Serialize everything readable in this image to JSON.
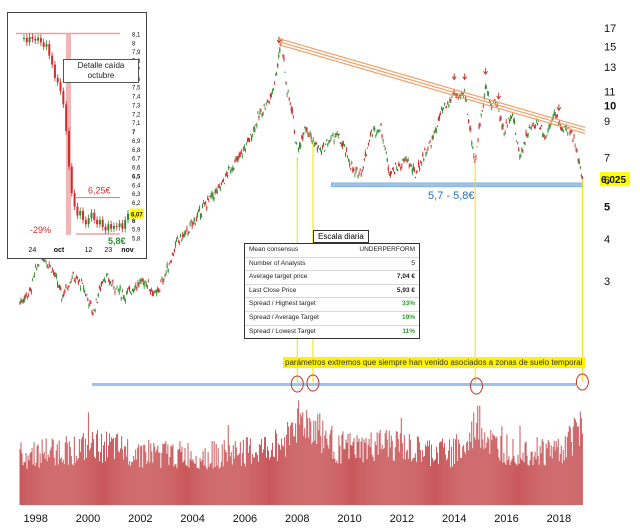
{
  "chart_data": [
    {
      "type": "line",
      "scale": "log",
      "yticks": [
        "17",
        "15",
        "13",
        "11",
        "10",
        "9",
        "7",
        "6",
        "5",
        "4",
        "3"
      ],
      "xticks": [
        "1998",
        "2000",
        "2002",
        "2004",
        "2006",
        "2008",
        "2010",
        "2012",
        "2014",
        "2016",
        "2018"
      ],
      "price_label": "6,025",
      "support_label": "5,7 - 5,8€",
      "series": [
        {
          "x": [
            1997.4,
            1997.8,
            1998.2,
            1998.6,
            1999.0,
            1999.4,
            1999.8,
            2000.2,
            2000.6,
            2001.0,
            2001.4,
            2001.8,
            2002.2,
            2002.6,
            2003.0,
            2003.4,
            2003.8,
            2004.2,
            2004.6,
            2005.0,
            2005.4,
            2005.8,
            2006.2,
            2006.6,
            2007.0,
            2007.2,
            2007.4,
            2007.6,
            2007.8,
            2008.0,
            2008.3,
            2008.6,
            2008.9,
            2009.2,
            2009.5,
            2009.8,
            2010.2,
            2010.5,
            2010.8,
            2011.2,
            2011.5,
            2011.8,
            2012.2,
            2012.5,
            2012.8,
            2013.2,
            2013.5,
            2013.8,
            2014.0,
            2014.2,
            2014.4,
            2014.6,
            2014.8,
            2015.0,
            2015.2,
            2015.4,
            2015.6,
            2015.9,
            2016.2,
            2016.5,
            2016.8,
            2017.2,
            2017.5,
            2017.8,
            2018.1,
            2018.4,
            2018.6,
            2018.8,
            2018.9
          ],
          "values": [
            2.6,
            2.8,
            3.6,
            3.3,
            2.7,
            3.1,
            2.9,
            2.4,
            3.1,
            2.9,
            2.7,
            2.9,
            3.0,
            2.7,
            3.2,
            3.9,
            4.2,
            4.7,
            5.2,
            5.6,
            6.4,
            7.0,
            8.0,
            9.5,
            10.6,
            12.5,
            15.8,
            11.0,
            9.8,
            7.0,
            8.8,
            7.8,
            7.3,
            7.8,
            8.2,
            7.4,
            6.2,
            6.5,
            8.2,
            8.6,
            6.4,
            6.5,
            6.9,
            6.2,
            7.0,
            8.0,
            9.5,
            10.1,
            11.0,
            10.3,
            11.0,
            8.6,
            6.7,
            9.0,
            11.4,
            10.0,
            10.3,
            8.3,
            9.6,
            7.0,
            8.3,
            9.0,
            8.0,
            9.5,
            8.6,
            8.3,
            8.0,
            6.6,
            6.03
          ]
        }
      ]
    },
    {
      "type": "bar",
      "title": "",
      "series": [
        {
          "x": [
            1997.4,
            1998.5,
            1999.5,
            2000.5,
            2001.5,
            2002.5,
            2003.5,
            2004.5,
            2005.5,
            2006.5,
            2007.5,
            2007.9,
            2008.4,
            2009.5,
            2010.5,
            2011.5,
            2012.5,
            2013.5,
            2014.5,
            2014.85,
            2015.5,
            2016.5,
            2017.5,
            2018.3,
            2018.9
          ],
          "values": [
            0.55,
            0.6,
            0.62,
            0.66,
            0.6,
            0.58,
            0.56,
            0.55,
            0.58,
            0.6,
            0.7,
            0.95,
            0.92,
            0.65,
            0.62,
            0.68,
            0.6,
            0.58,
            0.62,
            0.92,
            0.65,
            0.62,
            0.6,
            0.65,
            1.0
          ]
        }
      ]
    },
    {
      "type": "line",
      "yticks": [
        "8,1",
        "8",
        "7,9",
        "7,8",
        "7,7",
        "7,6",
        "7,5",
        "7,4",
        "7,3",
        "7,2",
        "7,1",
        "7",
        "6,9",
        "6,8",
        "6,7",
        "6,6",
        "6,5",
        "6,4",
        "6,3",
        "6,2",
        "6,1",
        "6",
        "5,9",
        "5,8"
      ],
      "xticks": [
        "24",
        "oct",
        "12",
        "23",
        "nov"
      ],
      "price_label": "6,07",
      "drop_label": "-29%",
      "level_high": "6,25€",
      "level_low": "5,8€",
      "series": [
        {
          "x": [
            0,
            1,
            2,
            3,
            4,
            5,
            6,
            7,
            8,
            9,
            10,
            11,
            12,
            13,
            14,
            15,
            16,
            17,
            18,
            19,
            20,
            21,
            22,
            23,
            24,
            25,
            26,
            27,
            28,
            29,
            30,
            31,
            32,
            33,
            34,
            35,
            36,
            37
          ],
          "values": [
            8.05,
            8.0,
            8.06,
            8.04,
            8.02,
            8.05,
            8.0,
            7.95,
            7.98,
            7.85,
            7.75,
            7.6,
            7.55,
            7.45,
            7.3,
            7.0,
            6.6,
            6.3,
            6.15,
            6.05,
            6.1,
            6.0,
            5.95,
            6.02,
            6.08,
            6.0,
            5.95,
            6.0,
            5.92,
            5.88,
            5.95,
            5.9,
            5.93,
            5.92,
            5.96,
            5.9,
            6.0,
            6.07
          ]
        }
      ]
    }
  ],
  "inset_title": "Detalle caída octubre",
  "consensus": {
    "title": "Escala diaria",
    "rows": [
      {
        "label": "Mean consensus",
        "value": "UNDERPERFORM"
      },
      {
        "label": "Number of Analysts",
        "value": "5"
      },
      {
        "label": "Average target price",
        "value": "7,04 €"
      },
      {
        "label": "Last Close Price",
        "value": "5,93 €"
      },
      {
        "label": "Spread / Highest target",
        "value": "33%"
      },
      {
        "label": "Spread / Average Target",
        "value": "19%"
      },
      {
        "label": "Spread / Lowest Target",
        "value": "11%"
      }
    ]
  },
  "note": "parámetros extremos que siempre han venido asociados a zonas de suelo temporal",
  "colors": {
    "bullish": "#2e8b2e",
    "bearish": "#d22b2b",
    "volume": "#c9585b",
    "trendline": "#f2a06a",
    "support": "#9ec3e8",
    "highlight": "#ffff00"
  }
}
